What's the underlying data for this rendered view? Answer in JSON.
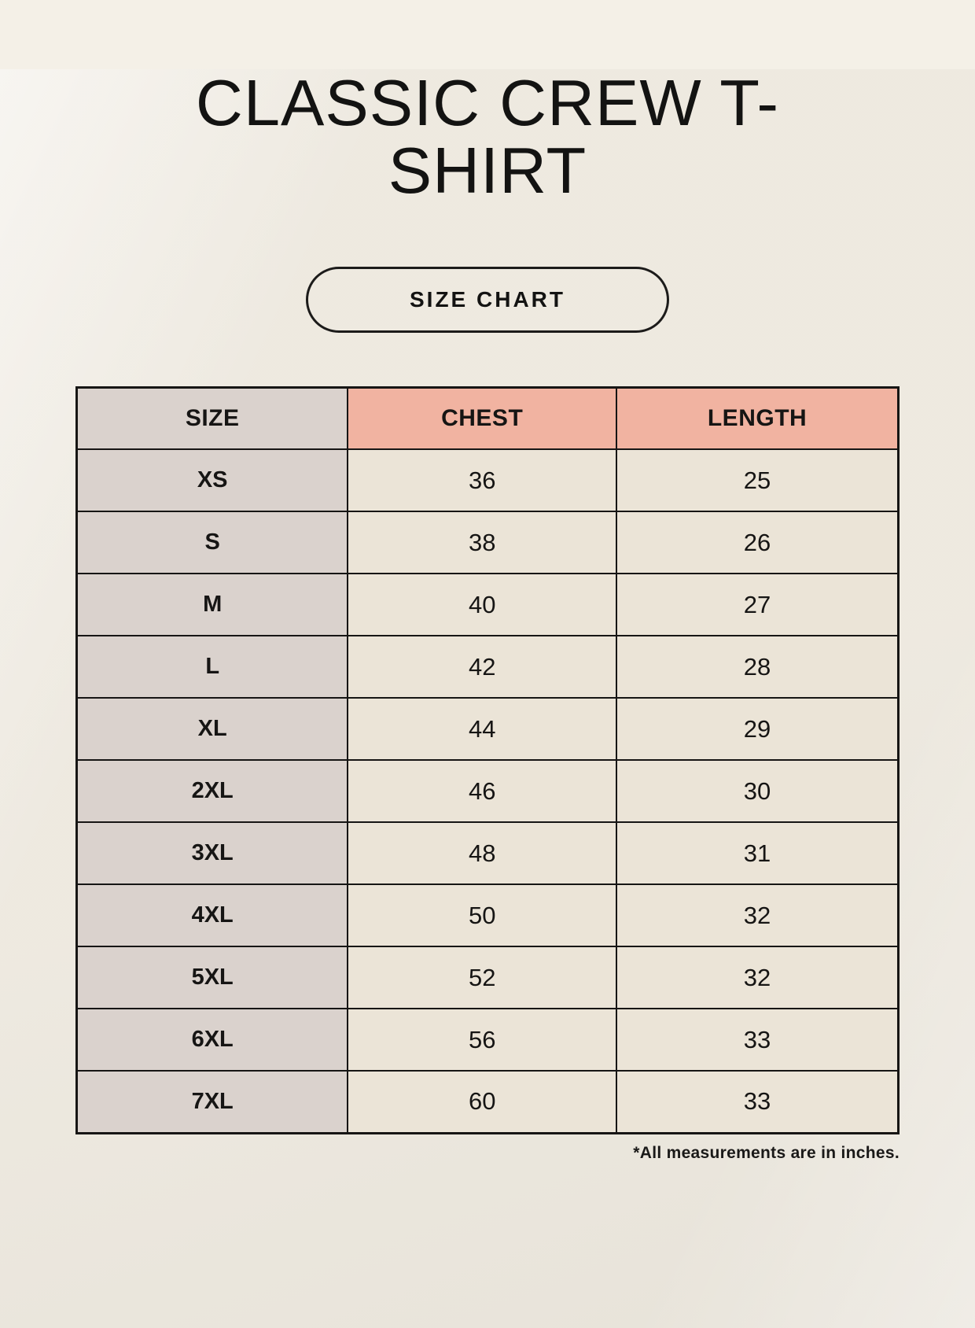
{
  "page": {
    "title": "CLASSIC CREW T-SHIRT",
    "badge_label": "SIZE CHART",
    "footnote": "*All measurements are in inches."
  },
  "colors": {
    "background": "#f4f0e7",
    "header_accent": "#f1b3a1",
    "size_column_bg": "#dad2cd",
    "cell_bg": "#ebe4d7",
    "border": "#161514",
    "text": "#161514"
  },
  "chart_data": {
    "type": "table",
    "title": "Classic Crew T-Shirt Size Chart",
    "columns": [
      "SIZE",
      "CHEST",
      "LENGTH"
    ],
    "rows": [
      [
        "XS",
        "36",
        "25"
      ],
      [
        "S",
        "38",
        "26"
      ],
      [
        "M",
        "40",
        "27"
      ],
      [
        "L",
        "42",
        "28"
      ],
      [
        "XL",
        "44",
        "29"
      ],
      [
        "2XL",
        "46",
        "30"
      ],
      [
        "3XL",
        "48",
        "31"
      ],
      [
        "4XL",
        "50",
        "32"
      ],
      [
        "5XL",
        "52",
        "32"
      ],
      [
        "6XL",
        "56",
        "33"
      ],
      [
        "7XL",
        "60",
        "33"
      ]
    ],
    "units": "inches"
  }
}
